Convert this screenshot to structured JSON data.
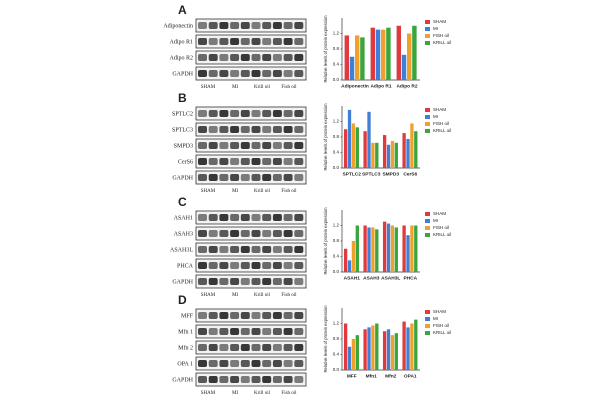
{
  "panels": [
    {
      "letter": "A",
      "rows": [
        "Adiponectin",
        "Adipo R1",
        "Adipo R2",
        "GAPDH"
      ],
      "lanes": [
        "SHAM",
        "MI",
        "Krill oil",
        "Fish oil"
      ]
    },
    {
      "letter": "B",
      "rows": [
        "SPTLC2",
        "SPTLC3",
        "SMPD3",
        "CerS6",
        "GAPDH"
      ],
      "lanes": [
        "SHAM",
        "MI",
        "Krill oil",
        "Fish oil"
      ]
    },
    {
      "letter": "C",
      "rows": [
        "ASAH1",
        "ASAH3",
        "ASAH3L",
        "PHCA",
        "GAPDH"
      ],
      "lanes": [
        "SHAM",
        "MI",
        "Krill oil",
        "Fish oil"
      ]
    },
    {
      "letter": "D",
      "rows": [
        "MFF",
        "Mfn 1",
        "Mfn 2",
        "OPA 1",
        "GAPDH"
      ],
      "lanes": [
        "SHAM",
        "MI",
        "Krill oil",
        "Fish oil"
      ]
    }
  ],
  "chart_data": [
    {
      "type": "bar",
      "ylabel": "Relative levels of protein expression",
      "categories": [
        "Adiponectin",
        "Adipo R1",
        "Adipo R2"
      ],
      "series": [
        {
          "name": "SHAM",
          "color": "#e0393e",
          "values": [
            1.15,
            1.35,
            1.4
          ]
        },
        {
          "name": "MI",
          "color": "#3f7fd6",
          "values": [
            0.6,
            1.3,
            0.65
          ]
        },
        {
          "name": "FISH oil",
          "color": "#f0a02c",
          "values": [
            1.15,
            1.3,
            1.2
          ]
        },
        {
          "name": "KRILL oil",
          "color": "#3aa53a",
          "values": [
            1.1,
            1.35,
            1.4
          ]
        }
      ],
      "ylim": [
        0,
        1.6
      ],
      "yticks": [
        {
          "value": 0,
          "label": "0.0"
        },
        0.4,
        0.8,
        1.2
      ],
      "legend": "right"
    },
    {
      "type": "bar",
      "ylabel": "Relative levels of protein expression",
      "categories": [
        "SPTLC2",
        "SPTLC3",
        "SMPD3",
        "CerS6"
      ],
      "series": [
        {
          "name": "SHAM",
          "color": "#e0393e",
          "values": [
            1.0,
            0.95,
            0.85,
            0.9
          ]
        },
        {
          "name": "MI",
          "color": "#3f7fd6",
          "values": [
            1.5,
            1.45,
            0.6,
            0.75
          ]
        },
        {
          "name": "FISH oil",
          "color": "#f0a02c",
          "values": [
            1.15,
            0.65,
            0.7,
            1.15
          ]
        },
        {
          "name": "KRILL oil",
          "color": "#3aa53a",
          "values": [
            1.05,
            0.65,
            0.65,
            0.95
          ]
        }
      ],
      "ylim": [
        0,
        1.6
      ],
      "yticks": [
        {
          "value": 0,
          "label": "0.0"
        },
        0.4,
        0.8,
        1.2
      ],
      "legend": "right"
    },
    {
      "type": "bar",
      "ylabel": "Relative levels of protein expression",
      "categories": [
        "ASAH1",
        "ASAH3",
        "ASAH3L",
        "PHCA"
      ],
      "series": [
        {
          "name": "SHAM",
          "color": "#e0393e",
          "values": [
            0.6,
            1.2,
            1.3,
            1.2
          ]
        },
        {
          "name": "MI",
          "color": "#3f7fd6",
          "values": [
            0.3,
            1.15,
            1.25,
            0.95
          ]
        },
        {
          "name": "FISH oil",
          "color": "#f0a02c",
          "values": [
            0.8,
            1.15,
            1.2,
            1.2
          ]
        },
        {
          "name": "KRILL oil",
          "color": "#3aa53a",
          "values": [
            1.2,
            1.1,
            1.15,
            1.2
          ]
        }
      ],
      "ylim": [
        0,
        1.6
      ],
      "yticks": [
        {
          "value": 0,
          "label": "0.0"
        },
        0.4,
        0.8,
        1.2
      ],
      "legend": "right"
    },
    {
      "type": "bar",
      "ylabel": "Relative levels of protein expression",
      "categories": [
        "MFF",
        "Mfn1",
        "Mfn2",
        "OPA1"
      ],
      "series": [
        {
          "name": "SHAM",
          "color": "#e0393e",
          "values": [
            1.2,
            1.05,
            1.0,
            1.25
          ]
        },
        {
          "name": "MI",
          "color": "#3f7fd6",
          "values": [
            0.6,
            1.1,
            1.05,
            1.1
          ]
        },
        {
          "name": "FISH oil",
          "color": "#f0a02c",
          "values": [
            0.8,
            1.15,
            0.9,
            1.2
          ]
        },
        {
          "name": "KRILL oil",
          "color": "#3aa53a",
          "values": [
            0.9,
            1.2,
            0.95,
            1.3
          ]
        }
      ],
      "ylim": [
        0,
        1.6
      ],
      "yticks": [
        {
          "value": 0,
          "label": "0.0"
        },
        0.4,
        0.8,
        1.2
      ],
      "legend": "right"
    }
  ]
}
